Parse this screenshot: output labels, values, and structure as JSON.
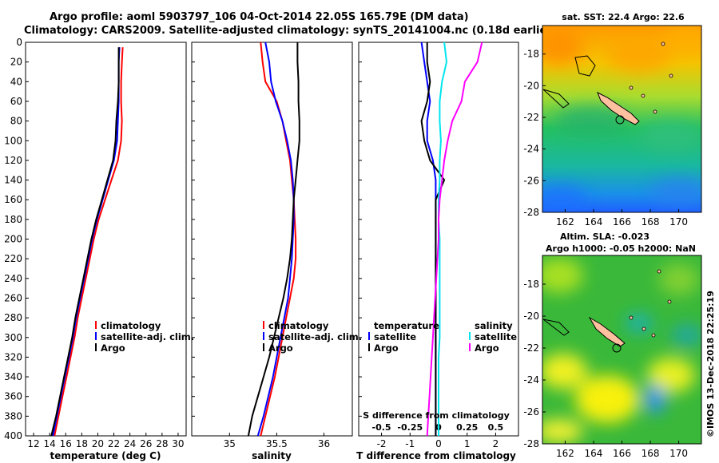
{
  "title": {
    "line1": "Argo profile: aoml 5903797_106 04-Oct-2014 22.05S 165.79E (DM data)",
    "line2": "Climatology: CARS2009. Satellite-adjusted climatology: synTS_20141004.nc (0.18d earlier)"
  },
  "colors": {
    "climatology": "#ff0000",
    "satellite": "#0000ff",
    "argo": "#000000",
    "sat_salinity": "#00e5ee",
    "argo_salinity": "#ff00ff"
  },
  "chart_data": [
    {
      "type": "line",
      "name": "temperature",
      "xlabel": "temperature (deg C)",
      "ylabel": "",
      "xlim": [
        11,
        31
      ],
      "ylim": [
        0,
        400
      ],
      "xticks": [
        "12",
        "14",
        "16",
        "18",
        "20",
        "22",
        "24",
        "26",
        "28",
        "30"
      ],
      "yticks": [
        "0",
        "20",
        "40",
        "60",
        "80",
        "100",
        "120",
        "140",
        "160",
        "180",
        "200",
        "220",
        "240",
        "260",
        "280",
        "300",
        "320",
        "340",
        "360",
        "380",
        "400"
      ],
      "legend": [
        "climatology",
        "satellite-adj. clim.",
        "Argo"
      ],
      "series": [
        {
          "name": "climatology",
          "color": "#ff0000",
          "depth": [
            5,
            20,
            40,
            60,
            80,
            100,
            120,
            140,
            160,
            180,
            200,
            220,
            240,
            260,
            280,
            300,
            320,
            340,
            360,
            380,
            400
          ],
          "values": [
            23.1,
            23.0,
            22.9,
            22.9,
            23.0,
            22.9,
            22.5,
            21.7,
            20.9,
            20.1,
            19.5,
            19.0,
            18.5,
            18.0,
            17.5,
            17.1,
            16.6,
            16.1,
            15.6,
            15.1,
            14.6
          ]
        },
        {
          "name": "satellite-adj. clim.",
          "color": "#0000ff",
          "depth": [
            5,
            20,
            40,
            60,
            80,
            100,
            120,
            140,
            160,
            180,
            200,
            220,
            240,
            260,
            280,
            300,
            320,
            340,
            360,
            380,
            400
          ],
          "values": [
            22.7,
            22.6,
            22.6,
            22.6,
            22.5,
            22.4,
            22.0,
            21.3,
            20.6,
            19.9,
            19.3,
            18.8,
            18.3,
            17.8,
            17.3,
            16.9,
            16.4,
            15.9,
            15.4,
            14.9,
            14.4
          ]
        },
        {
          "name": "Argo",
          "color": "#000000",
          "depth": [
            5,
            20,
            40,
            60,
            80,
            100,
            120,
            140,
            160,
            180,
            200,
            220,
            240,
            260,
            280,
            300,
            320,
            340,
            360,
            380,
            400
          ],
          "values": [
            22.6,
            22.6,
            22.6,
            22.5,
            22.3,
            22.2,
            21.9,
            21.2,
            20.5,
            19.8,
            19.2,
            18.7,
            18.2,
            17.7,
            17.2,
            16.8,
            16.3,
            15.8,
            15.3,
            14.8,
            14.2
          ]
        }
      ]
    },
    {
      "type": "line",
      "name": "salinity",
      "xlabel": "salinity",
      "ylabel": "",
      "xlim": [
        34.6,
        36.3
      ],
      "ylim": [
        0,
        400
      ],
      "xticks": [
        "35",
        "35.5",
        "36"
      ],
      "legend": [
        "climatology",
        "satellite-adj. clim.",
        "Argo"
      ],
      "series": [
        {
          "name": "climatology",
          "color": "#ff0000",
          "depth": [
            0,
            20,
            40,
            60,
            80,
            100,
            120,
            140,
            160,
            180,
            200,
            220,
            240,
            260,
            280,
            300,
            320,
            340,
            360,
            380,
            400
          ],
          "values": [
            35.33,
            35.35,
            35.38,
            35.5,
            35.56,
            35.6,
            35.64,
            35.66,
            35.68,
            35.69,
            35.7,
            35.7,
            35.68,
            35.64,
            35.6,
            35.56,
            35.52,
            35.48,
            35.43,
            35.38,
            35.33
          ]
        },
        {
          "name": "satellite-adj. clim.",
          "color": "#0000ff",
          "depth": [
            0,
            20,
            40,
            60,
            80,
            100,
            120,
            140,
            160,
            180,
            200,
            220,
            240,
            260,
            280,
            300,
            320,
            340,
            360,
            380,
            400
          ],
          "values": [
            35.38,
            35.42,
            35.44,
            35.49,
            35.56,
            35.61,
            35.65,
            35.67,
            35.68,
            35.68,
            35.67,
            35.66,
            35.64,
            35.62,
            35.58,
            35.54,
            35.5,
            35.46,
            35.41,
            35.36,
            35.3
          ]
        },
        {
          "name": "Argo",
          "color": "#000000",
          "depth": [
            0,
            20,
            40,
            60,
            80,
            100,
            120,
            140,
            160,
            180,
            200,
            220,
            240,
            260,
            280,
            300,
            320,
            340,
            360,
            380,
            400
          ],
          "values": [
            35.72,
            35.72,
            35.73,
            35.73,
            35.74,
            35.74,
            35.72,
            35.7,
            35.68,
            35.67,
            35.66,
            35.64,
            35.61,
            35.57,
            35.52,
            35.47,
            35.42,
            35.36,
            35.3,
            35.24,
            35.2
          ]
        }
      ]
    },
    {
      "type": "line",
      "name": "difference",
      "xlabel": "T difference from climatology",
      "xlabel2": "S difference from climatology",
      "xlim": [
        -2.8,
        2.8
      ],
      "x2lim": [
        -0.7,
        0.7
      ],
      "ylim": [
        0,
        400
      ],
      "xticks": [
        "-2",
        "-1",
        "0",
        "1",
        "2"
      ],
      "x2ticks": [
        "-0.5",
        "-0.25",
        "0",
        "0.25",
        "0.5"
      ],
      "legend_left_title": "temperature",
      "legend_right_title": "salinity",
      "legend": [
        "satellite",
        "Argo"
      ],
      "series": [
        {
          "name": "temperature satellite",
          "axis": "T",
          "color": "#0000ff",
          "depth": [
            0,
            20,
            40,
            60,
            80,
            100,
            120,
            140,
            160,
            180,
            200,
            220,
            240,
            260,
            280,
            300,
            320,
            340,
            360,
            380,
            400
          ],
          "values": [
            -0.6,
            -0.5,
            -0.4,
            -0.3,
            -0.4,
            -0.4,
            -0.2,
            -0.1,
            -0.1,
            -0.1,
            -0.1,
            -0.1,
            -0.1,
            -0.1,
            -0.1,
            -0.1,
            -0.1,
            -0.1,
            -0.1,
            -0.1,
            -0.1
          ]
        },
        {
          "name": "temperature Argo",
          "axis": "T",
          "color": "#000000",
          "depth": [
            0,
            20,
            40,
            60,
            80,
            100,
            120,
            140,
            160,
            180,
            200,
            220,
            240,
            260,
            280,
            300,
            320,
            340,
            360,
            380,
            400
          ],
          "values": [
            -0.4,
            -0.4,
            -0.3,
            -0.4,
            -0.6,
            -0.5,
            -0.3,
            0.2,
            -0.1,
            -0.1,
            -0.1,
            -0.1,
            -0.1,
            -0.1,
            -0.1,
            -0.1,
            -0.1,
            -0.1,
            -0.1,
            -0.1,
            -0.1
          ]
        },
        {
          "name": "salinity satellite",
          "axis": "S",
          "color": "#00e5ee",
          "depth": [
            0,
            20,
            40,
            60,
            80,
            100,
            120,
            140,
            160,
            180,
            200,
            220,
            240,
            260,
            280,
            300,
            320,
            340,
            360,
            380,
            400
          ],
          "values": [
            0.05,
            0.07,
            0.03,
            0.01,
            0.01,
            0.02,
            0.01,
            0.01,
            0.0,
            0.0,
            0.01,
            0.01,
            0.01,
            0.01,
            0.01,
            0.01,
            0.0,
            0.0,
            0.0,
            0.0,
            0.0
          ]
        },
        {
          "name": "salinity Argo",
          "axis": "S",
          "color": "#ff00ff",
          "depth": [
            0,
            20,
            40,
            60,
            80,
            100,
            120,
            140,
            160,
            180,
            200,
            220,
            240,
            260,
            280,
            300,
            320,
            340,
            360,
            380,
            400
          ],
          "values": [
            0.38,
            0.34,
            0.23,
            0.2,
            0.12,
            0.08,
            0.05,
            0.03,
            0.01,
            0.0,
            0.0,
            -0.01,
            -0.02,
            -0.03,
            -0.04,
            -0.05,
            -0.06,
            -0.07,
            -0.08,
            -0.09,
            -0.1
          ]
        }
      ]
    },
    {
      "type": "heatmap",
      "name": "sst_map",
      "title": "sat. SST: 22.4 Argo: 22.6",
      "xticks": [
        "162",
        "164",
        "166",
        "168",
        "170"
      ],
      "yticks": [
        "-18",
        "-20",
        "-22",
        "-24",
        "-26",
        "-28"
      ]
    },
    {
      "type": "heatmap",
      "name": "sla_map",
      "title_line1": "Altim. SLA: -0.023",
      "title_line2": "Argo h1000: -0.05 h2000: NaN",
      "xticks": [
        "162",
        "164",
        "166",
        "168",
        "170"
      ],
      "yticks": [
        "-18",
        "-20",
        "-22",
        "-24",
        "-26",
        "-28"
      ]
    }
  ],
  "credit": "©IMOS 13-Dec-2018 22:25:19"
}
